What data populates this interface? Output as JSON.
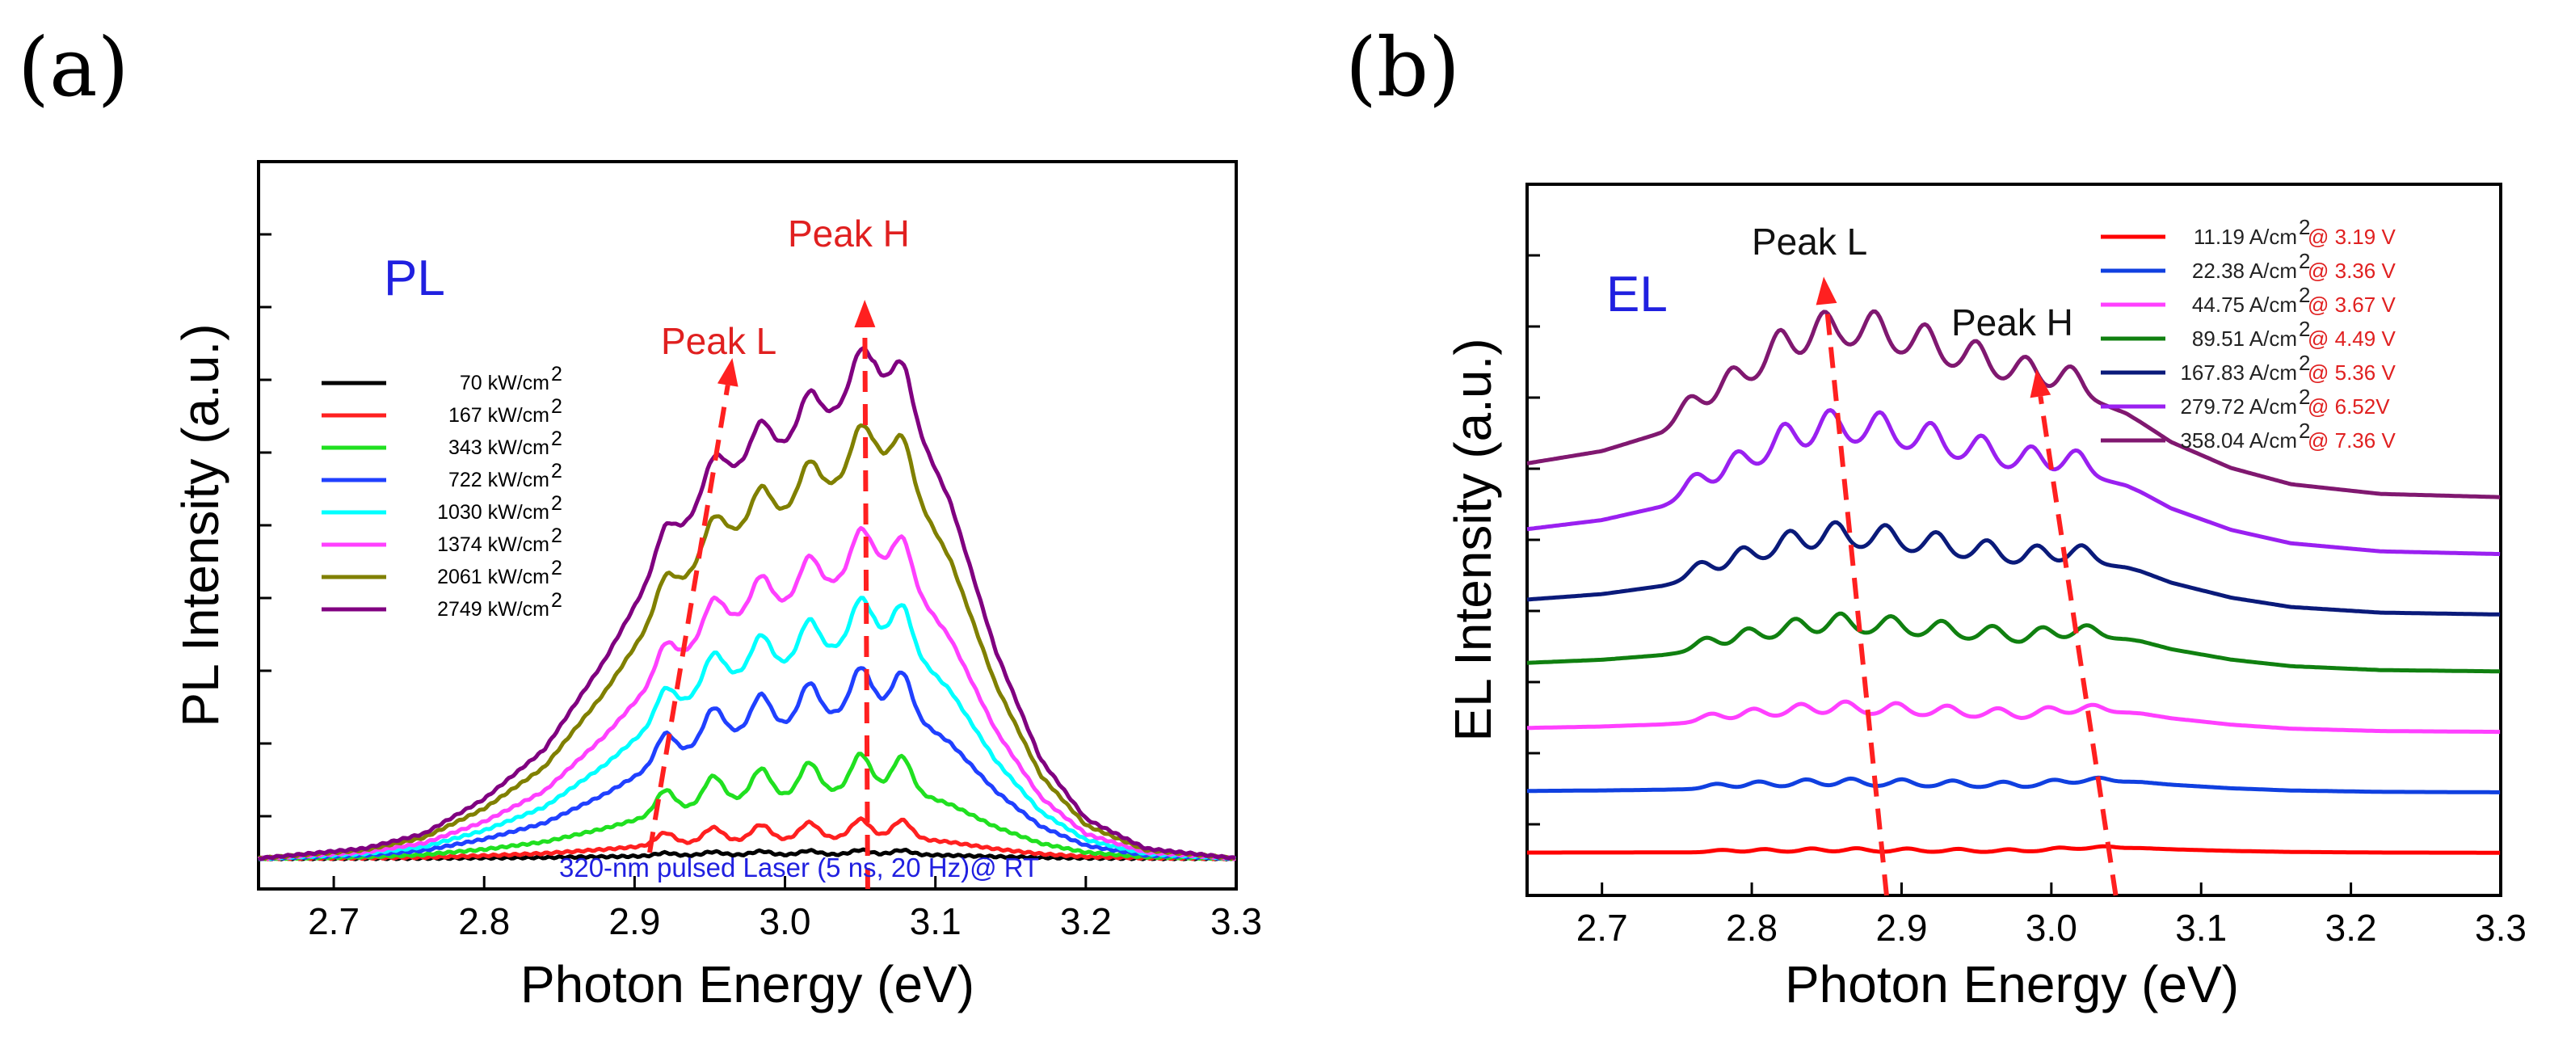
{
  "colors": {
    "red_annotation": "#ff2020",
    "blue_text": "#2020e0",
    "red_text": "#e02020"
  },
  "chart_data": [
    {
      "type": "line",
      "panel_label": "(a)",
      "tag": "PL",
      "xlabel": "Photon Energy (eV)",
      "ylabel": "PL Intensity (a.u.)",
      "xlim": [
        2.65,
        3.3
      ],
      "ylim": [
        0,
        10
      ],
      "xticks": [
        2.7,
        2.8,
        2.9,
        3.0,
        3.1,
        3.2,
        3.3
      ],
      "xtick_labels": [
        "2.7",
        "2.8",
        "2.9",
        "3.0",
        "3.1",
        "3.2",
        "3.3"
      ],
      "yticks": [
        1,
        2,
        3,
        4,
        5,
        6,
        7,
        8,
        9
      ],
      "peak_L": {
        "label": "Peak L",
        "x_from": 2.91,
        "y_from": 0.5,
        "x_to": 2.965,
        "y_to": 7.3
      },
      "peak_H": {
        "label": "Peak H",
        "x_from": 3.055,
        "y_from": 0.0,
        "x_to": 3.053,
        "y_to": 8.1
      },
      "note": "320-nm pulsed Laser (5 ns, 20 Hz)@ RT",
      "peak_positions": [
        2.92,
        2.952,
        2.984,
        3.016,
        3.05,
        3.078
      ],
      "series": [
        {
          "name": "70 kW/cm",
          "sup": "2",
          "color": "#000000",
          "peak": 0.13,
          "ripple": 0.04
        },
        {
          "name": "167 kW/cm",
          "sup": "2",
          "color": "#ff2020",
          "peak": 0.45,
          "ripple": 0.16
        },
        {
          "name": "343 kW/cm",
          "sup": "2",
          "color": "#20e020",
          "peak": 1.25,
          "ripple": 0.3
        },
        {
          "name": "722 kW/cm",
          "sup": "2",
          "color": "#2040ff",
          "peak": 2.45,
          "ripple": 0.35
        },
        {
          "name": "1030 kW/cm",
          "sup": "2",
          "color": "#00ffff",
          "peak": 3.45,
          "ripple": 0.35
        },
        {
          "name": "1374 kW/cm",
          "sup": "2",
          "color": "#ff40ff",
          "peak": 4.45,
          "ripple": 0.35
        },
        {
          "name": "2061 kW/cm",
          "sup": "2",
          "color": "#808000",
          "peak": 5.95,
          "ripple": 0.35
        },
        {
          "name": "2749 kW/cm",
          "sup": "2",
          "color": "#800080",
          "peak": 7.05,
          "ripple": 0.35
        }
      ]
    },
    {
      "type": "line",
      "panel_label": "(b)",
      "tag": "EL",
      "xlabel": "Photon Energy (eV)",
      "ylabel": "EL Intensity (a.u.)",
      "xlim": [
        2.65,
        3.3
      ],
      "ylim": [
        0,
        10
      ],
      "xticks": [
        2.7,
        2.8,
        2.9,
        3.0,
        3.1,
        3.2,
        3.3
      ],
      "xtick_labels": [
        "2.7",
        "2.8",
        "2.9",
        "3.0",
        "3.1",
        "3.2",
        "3.3"
      ],
      "yticks": [
        1,
        2,
        3,
        4,
        5,
        6,
        7,
        8,
        9
      ],
      "peak_L": {
        "label": "Peak L",
        "x_from": 2.89,
        "y_from": 0.0,
        "x_to": 2.848,
        "y_to": 8.7
      },
      "peak_H": {
        "label": "Peak H",
        "x_from": 3.043,
        "y_from": 0.0,
        "x_to": 2.99,
        "y_to": 7.4
      },
      "peak_positions": [
        2.78,
        2.808,
        2.84,
        2.87,
        2.904,
        2.938,
        2.972,
        3.005,
        3.035
      ],
      "series": [
        {
          "name": "11.19 A/cm",
          "sup": "2",
          "cond": " @ 3.19 V",
          "color": "#ff0000",
          "offset": 0.6,
          "peak_amp": 0.22
        },
        {
          "name": "22.38 A/cm",
          "sup": "2",
          "cond": " @ 3.36 V",
          "color": "#1040e0",
          "offset": 1.45,
          "peak_amp": 0.45
        },
        {
          "name": "44.75 A/cm",
          "sup": "2",
          "cond": " @ 3.67 V",
          "color": "#ff40ff",
          "offset": 2.3,
          "peak_amp": 0.75
        },
        {
          "name": "89.51 A/cm",
          "sup": "2",
          "cond": " @ 4.49 V",
          "color": "#108010",
          "offset": 3.15,
          "peak_amp": 1.15
        },
        {
          "name": "167.83 A/cm",
          "sup": "2",
          "cond": " @ 5.36 V",
          "color": "#0a1a7a",
          "offset": 3.95,
          "peak_amp": 1.55
        },
        {
          "name": "279.72 A/cm",
          "sup": "2",
          "cond": " @ 6.52V",
          "color": "#9a20f0",
          "offset": 4.8,
          "peak_amp": 2.1
        },
        {
          "name": "358.04 A/cm",
          "sup": "2",
          "cond": " @ 7.36 V",
          "color": "#801870",
          "offset": 5.6,
          "peak_amp": 2.4
        }
      ]
    }
  ]
}
